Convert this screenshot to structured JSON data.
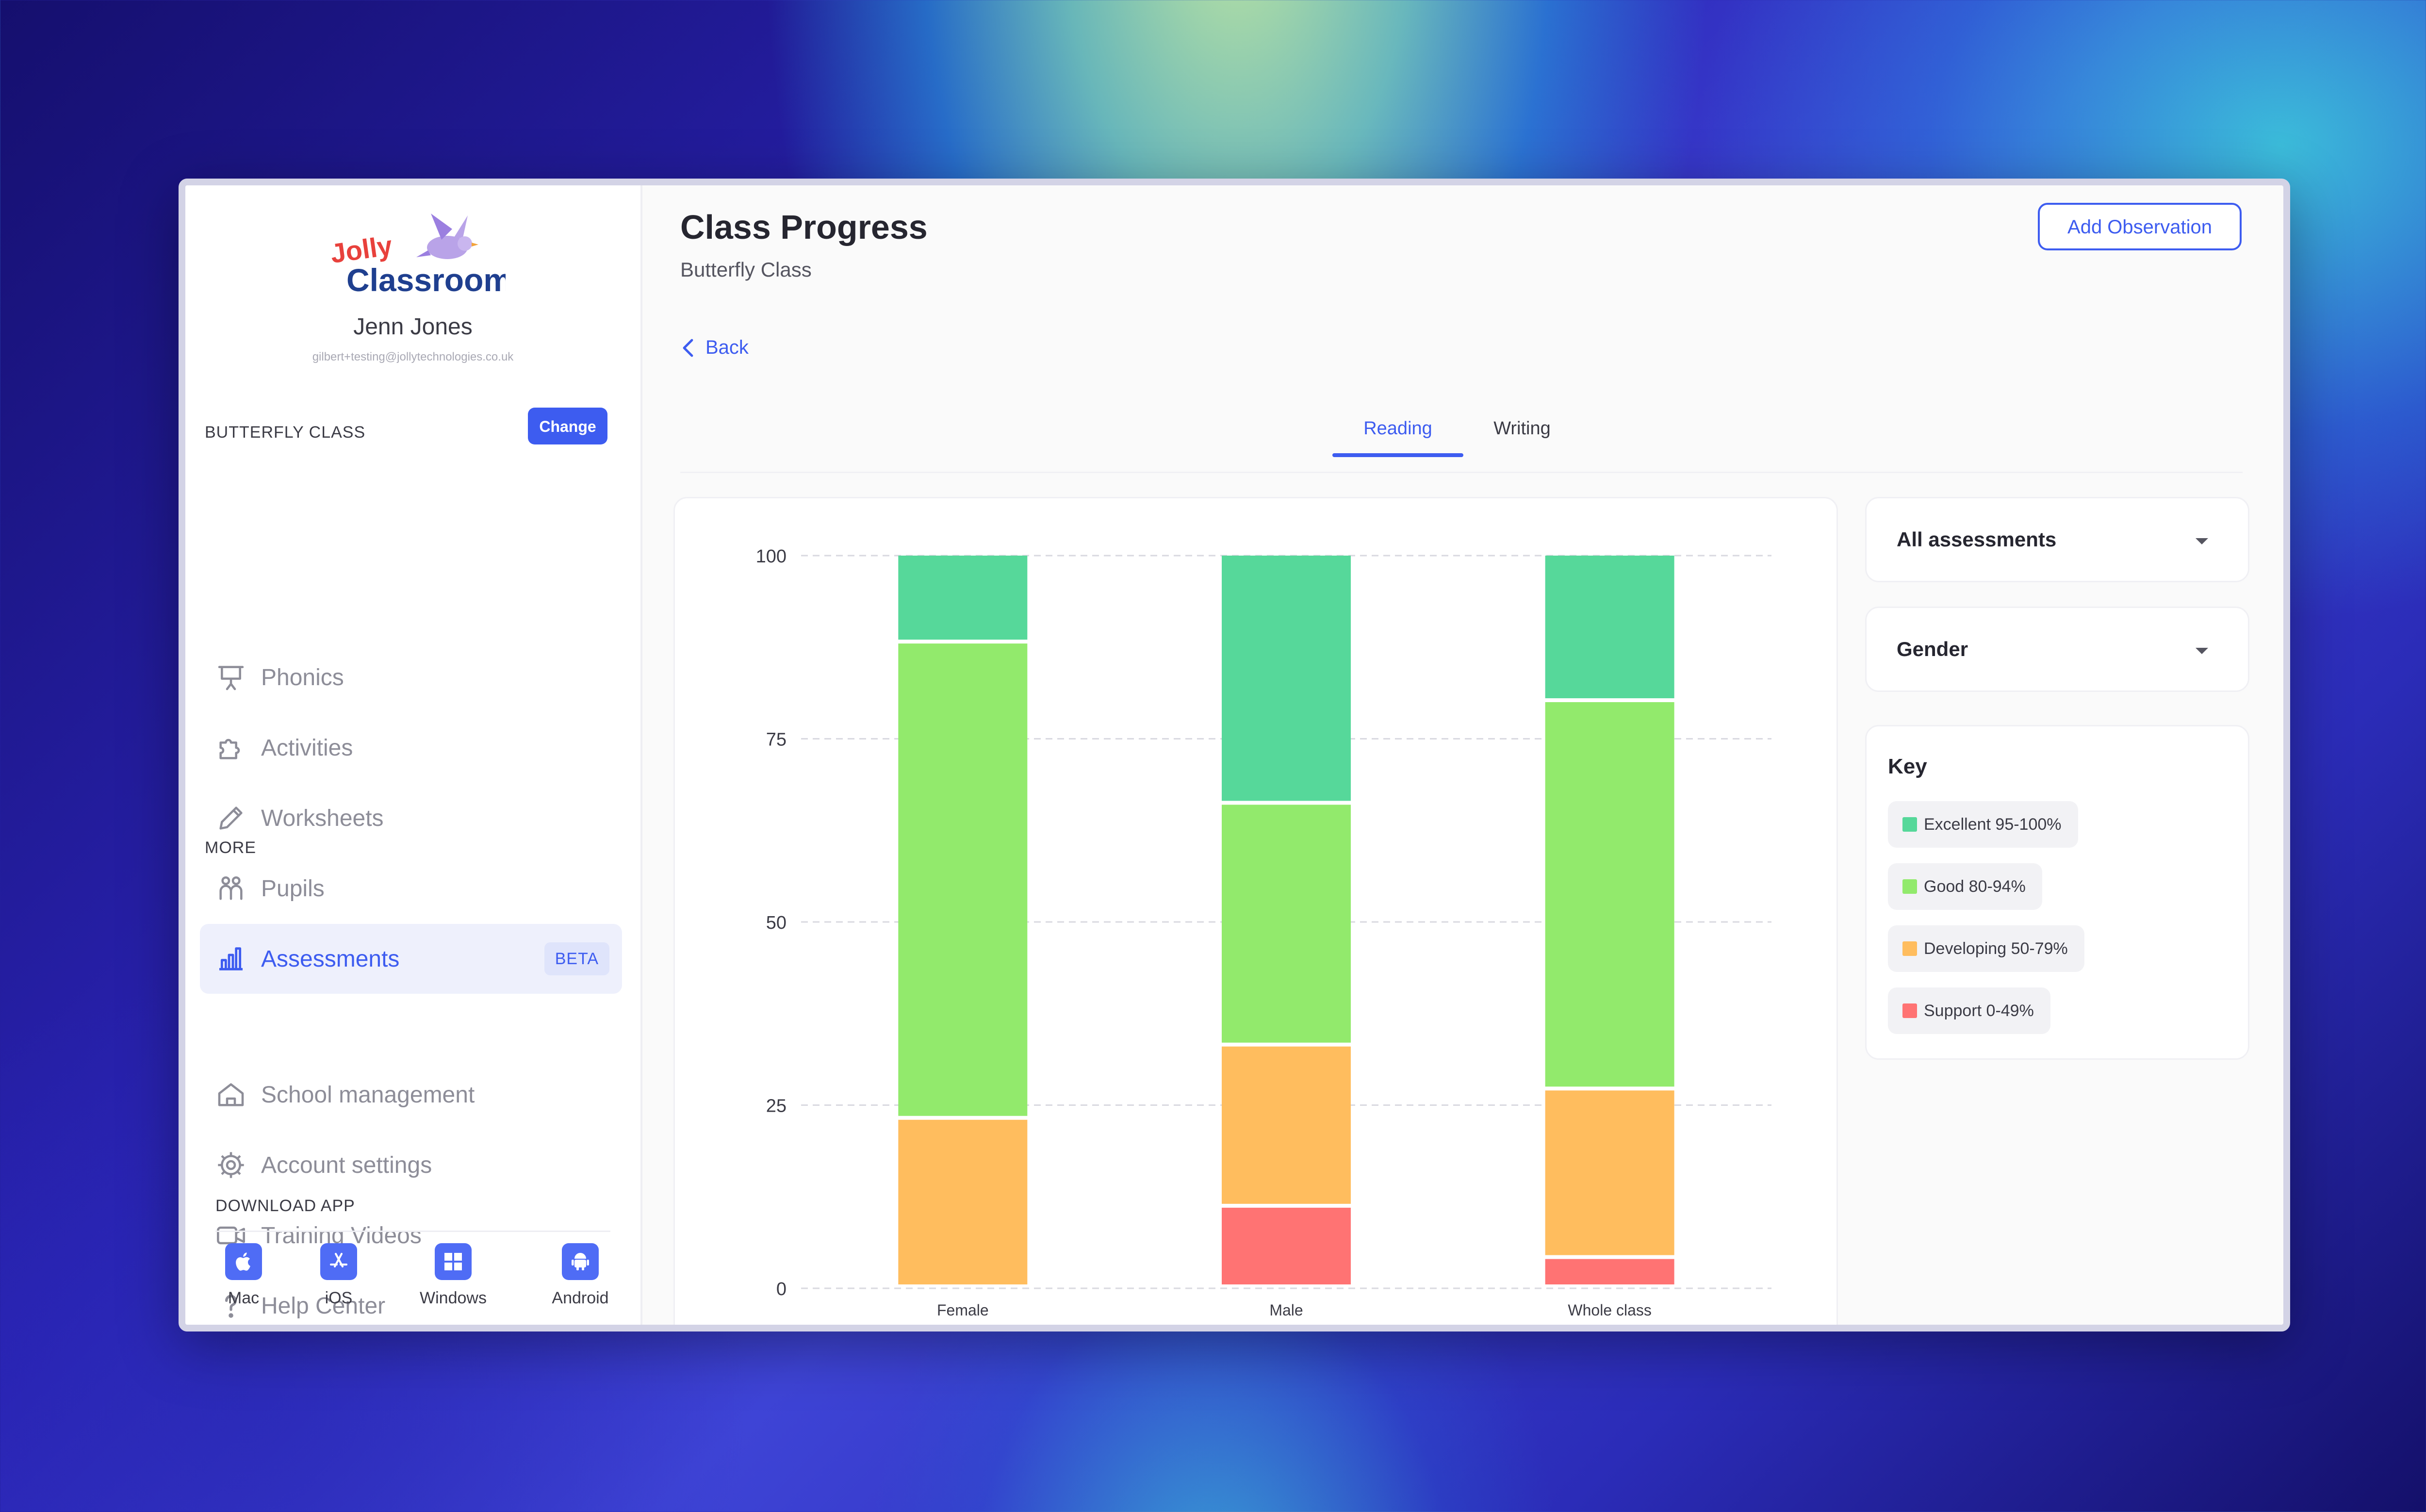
{
  "sidebar": {
    "logo_text_top": "Jolly",
    "logo_text_bottom": "Classroom",
    "user_name": "Jenn Jones",
    "user_email": "gilbert+testing@jollytechnologies.co.uk",
    "class_label": "BUTTERFLY CLASS",
    "change_label": "Change",
    "nav_items": [
      {
        "label": "Phonics",
        "icon": "presentation-board-icon"
      },
      {
        "label": "Activities",
        "icon": "puzzle-icon"
      },
      {
        "label": "Worksheets",
        "icon": "pencil-icon"
      },
      {
        "label": "Pupils",
        "icon": "pupils-icon"
      },
      {
        "label": "Assessments",
        "icon": "bar-chart-icon",
        "badge": "BETA",
        "active": true
      }
    ],
    "more_label": "MORE",
    "more_items": [
      {
        "label": "School management",
        "icon": "school-icon"
      },
      {
        "label": "Account settings",
        "icon": "gear-icon"
      },
      {
        "label": "Training Videos",
        "icon": "video-camera-icon"
      },
      {
        "label": "Help Center",
        "icon": "question-mark-icon"
      }
    ],
    "download_label": "DOWNLOAD APP",
    "apps": [
      {
        "label": "Mac",
        "icon": "apple-icon"
      },
      {
        "label": "iOS",
        "icon": "app-store-icon"
      },
      {
        "label": "Windows",
        "icon": "windows-icon"
      },
      {
        "label": "Android",
        "icon": "android-icon"
      }
    ]
  },
  "header": {
    "title": "Class Progress",
    "subtitle": "Butterfly Class",
    "add_observation_label": "Add Observation",
    "back_label": "Back"
  },
  "tabs": [
    {
      "label": "Reading",
      "active": true
    },
    {
      "label": "Writing",
      "active": false
    }
  ],
  "filters": {
    "assessment_select": "All assessments",
    "group_select": "Gender"
  },
  "key": {
    "title": "Key",
    "items": [
      {
        "label": "Excellent 95-100%",
        "color": "#56d89a"
      },
      {
        "label": "Good 80-94%",
        "color": "#92ea6c"
      },
      {
        "label": "Developing 50-79%",
        "color": "#ffbd5e"
      },
      {
        "label": "Support 0-49%",
        "color": "#ff7373"
      }
    ]
  },
  "chart_data": {
    "type": "bar",
    "stacked": true,
    "categories": [
      "Female",
      "Male",
      "Whole class"
    ],
    "ylim": [
      0,
      100
    ],
    "yticks": [
      0,
      25,
      50,
      75,
      100
    ],
    "grid": true,
    "series": [
      {
        "name": "Support 0-49%",
        "color": "#ff7373",
        "values": [
          0,
          11,
          4
        ]
      },
      {
        "name": "Developing 50-79%",
        "color": "#ffbd5e",
        "values": [
          23,
          22,
          23
        ]
      },
      {
        "name": "Good 80-94%",
        "color": "#92ea6c",
        "values": [
          65,
          33,
          53
        ]
      },
      {
        "name": "Excellent 95-100%",
        "color": "#56d89a",
        "values": [
          12,
          34,
          20
        ]
      }
    ]
  }
}
